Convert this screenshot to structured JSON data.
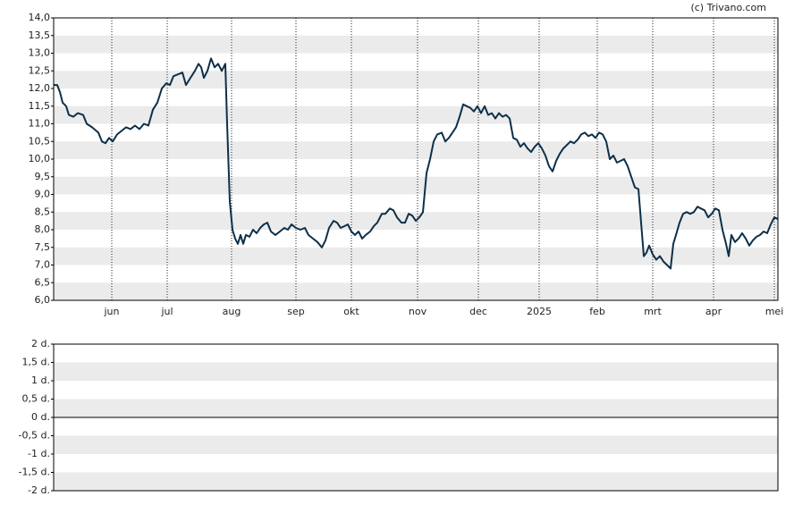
{
  "chart_data": [
    {
      "type": "line",
      "source": "(c) Trivano.com",
      "xlim": [
        0,
        810
      ],
      "xticks": [
        {
          "value": 65,
          "label": "jun"
        },
        {
          "value": 127,
          "label": "jul"
        },
        {
          "value": 199,
          "label": "aug"
        },
        {
          "value": 271,
          "label": "sep"
        },
        {
          "value": 333,
          "label": "okt"
        },
        {
          "value": 407,
          "label": "nov"
        },
        {
          "value": 475,
          "label": "dec"
        },
        {
          "value": 543,
          "label": "2025"
        },
        {
          "value": 608,
          "label": "feb"
        },
        {
          "value": 670,
          "label": "mrt"
        },
        {
          "value": 738,
          "label": "apr"
        },
        {
          "value": 806,
          "label": "mei"
        }
      ],
      "ylim": [
        6,
        14
      ],
      "yticks": [
        {
          "value": 6,
          "label": "6,0"
        },
        {
          "value": 6.5,
          "label": "6,5"
        },
        {
          "value": 7,
          "label": "7,0"
        },
        {
          "value": 7.5,
          "label": "7,5"
        },
        {
          "value": 8,
          "label": "8,0"
        },
        {
          "value": 8.5,
          "label": "8,5"
        },
        {
          "value": 9,
          "label": "9,0"
        },
        {
          "value": 9.5,
          "label": "9,5"
        },
        {
          "value": 10,
          "label": "10,0"
        },
        {
          "value": 10.5,
          "label": "10,5"
        },
        {
          "value": 11,
          "label": "11,0"
        },
        {
          "value": 11.5,
          "label": "11,5"
        },
        {
          "value": 12,
          "label": "12,0"
        },
        {
          "value": 12.5,
          "label": "12,5"
        },
        {
          "value": 13,
          "label": "13,0"
        },
        {
          "value": 13.5,
          "label": "13,5"
        },
        {
          "value": 14,
          "label": "14,0"
        }
      ],
      "grid": true,
      "series": [
        {
          "color": "#0d3049",
          "x": [
            0,
            4,
            7,
            10,
            14,
            17,
            22,
            27,
            33,
            37,
            43,
            50,
            54,
            58,
            62,
            66,
            71,
            76,
            81,
            86,
            91,
            96,
            101,
            106,
            111,
            116,
            121,
            126,
            130,
            134,
            139,
            144,
            148,
            153,
            158,
            162,
            165,
            168,
            172,
            176,
            180,
            184,
            188,
            192,
            194,
            197,
            200,
            203,
            206,
            209,
            212,
            215,
            219,
            223,
            227,
            231,
            235,
            239,
            243,
            248,
            253,
            258,
            262,
            266,
            271,
            276,
            281,
            285,
            290,
            295,
            300,
            304,
            308,
            313,
            317,
            321,
            325,
            329,
            333,
            337,
            341,
            345,
            349,
            354,
            358,
            362,
            367,
            371,
            376,
            380,
            384,
            389,
            393,
            397,
            401,
            405,
            409,
            413,
            417,
            421,
            425,
            429,
            434,
            438,
            442,
            446,
            450,
            454,
            458,
            462,
            466,
            470,
            474,
            478,
            482,
            486,
            490,
            494,
            498,
            502,
            506,
            510,
            514,
            518,
            522,
            526,
            530,
            534,
            538,
            542,
            546,
            550,
            554,
            558,
            562,
            566,
            570,
            574,
            578,
            582,
            586,
            590,
            594,
            598,
            602,
            606,
            610,
            614,
            618,
            622,
            626,
            630,
            634,
            638,
            642,
            646,
            650,
            654,
            657,
            660,
            663,
            666,
            670,
            674,
            678,
            682,
            686,
            690,
            693,
            696,
            700,
            704,
            708,
            712,
            716,
            720,
            724,
            728,
            732,
            736,
            740,
            744,
            748,
            752,
            755,
            758,
            762,
            766,
            770,
            774,
            778,
            782,
            786,
            790,
            794,
            798,
            802,
            806,
            810
          ],
          "values": [
            12.1,
            12.1,
            11.9,
            11.6,
            11.5,
            11.25,
            11.2,
            11.3,
            11.25,
            11.0,
            10.9,
            10.75,
            10.5,
            10.45,
            10.6,
            10.5,
            10.7,
            10.8,
            10.9,
            10.85,
            10.95,
            10.85,
            11.0,
            10.95,
            11.4,
            11.6,
            12.0,
            12.15,
            12.1,
            12.35,
            12.4,
            12.45,
            12.1,
            12.3,
            12.5,
            12.7,
            12.6,
            12.3,
            12.5,
            12.85,
            12.6,
            12.7,
            12.5,
            12.7,
            11.0,
            8.8,
            8.0,
            7.75,
            7.6,
            7.85,
            7.6,
            7.85,
            7.8,
            8.0,
            7.9,
            8.05,
            8.15,
            8.2,
            7.95,
            7.85,
            7.95,
            8.05,
            8.0,
            8.15,
            8.05,
            8.0,
            8.05,
            7.85,
            7.75,
            7.65,
            7.5,
            7.7,
            8.05,
            8.25,
            8.2,
            8.05,
            8.1,
            8.15,
            7.95,
            7.85,
            7.95,
            7.75,
            7.85,
            7.95,
            8.1,
            8.2,
            8.45,
            8.45,
            8.6,
            8.55,
            8.35,
            8.2,
            8.2,
            8.45,
            8.4,
            8.25,
            8.35,
            8.5,
            9.6,
            10.0,
            10.5,
            10.7,
            10.75,
            10.5,
            10.6,
            10.75,
            10.9,
            11.2,
            11.55,
            11.5,
            11.45,
            11.35,
            11.5,
            11.3,
            11.5,
            11.25,
            11.3,
            11.15,
            11.3,
            11.2,
            11.25,
            11.15,
            10.6,
            10.55,
            10.35,
            10.45,
            10.3,
            10.2,
            10.35,
            10.45,
            10.3,
            10.1,
            9.8,
            9.65,
            9.95,
            10.15,
            10.3,
            10.4,
            10.5,
            10.45,
            10.55,
            10.7,
            10.75,
            10.65,
            10.7,
            10.6,
            10.75,
            10.7,
            10.5,
            10.0,
            10.1,
            9.9,
            9.95,
            10.0,
            9.8,
            9.5,
            9.2,
            9.15,
            8.2,
            7.25,
            7.35,
            7.55,
            7.3,
            7.15,
            7.25,
            7.1,
            7.0,
            6.9,
            7.6,
            7.85,
            8.2,
            8.45,
            8.5,
            8.45,
            8.5,
            8.65,
            8.6,
            8.55,
            8.35,
            8.45,
            8.6,
            8.55,
            8.0,
            7.6,
            7.25,
            7.85,
            7.65,
            7.75,
            7.9,
            7.75,
            7.55,
            7.7,
            7.8,
            7.85,
            7.95,
            7.9,
            8.15,
            8.35,
            8.3
          ]
        }
      ]
    },
    {
      "type": "volume",
      "ylim": [
        -2,
        2
      ],
      "yticks": [
        {
          "value": -2,
          "label": "-2 d."
        },
        {
          "value": -1.5,
          "label": "-1,5 d."
        },
        {
          "value": -1,
          "label": "-1 d."
        },
        {
          "value": -0.5,
          "label": "-0,5 d."
        },
        {
          "value": 0,
          "label": "0 d."
        },
        {
          "value": 0.5,
          "label": "0,5 d."
        },
        {
          "value": 1,
          "label": "1 d."
        },
        {
          "value": 1.5,
          "label": "1,5 d."
        },
        {
          "value": 2,
          "label": "2 d."
        }
      ]
    }
  ]
}
